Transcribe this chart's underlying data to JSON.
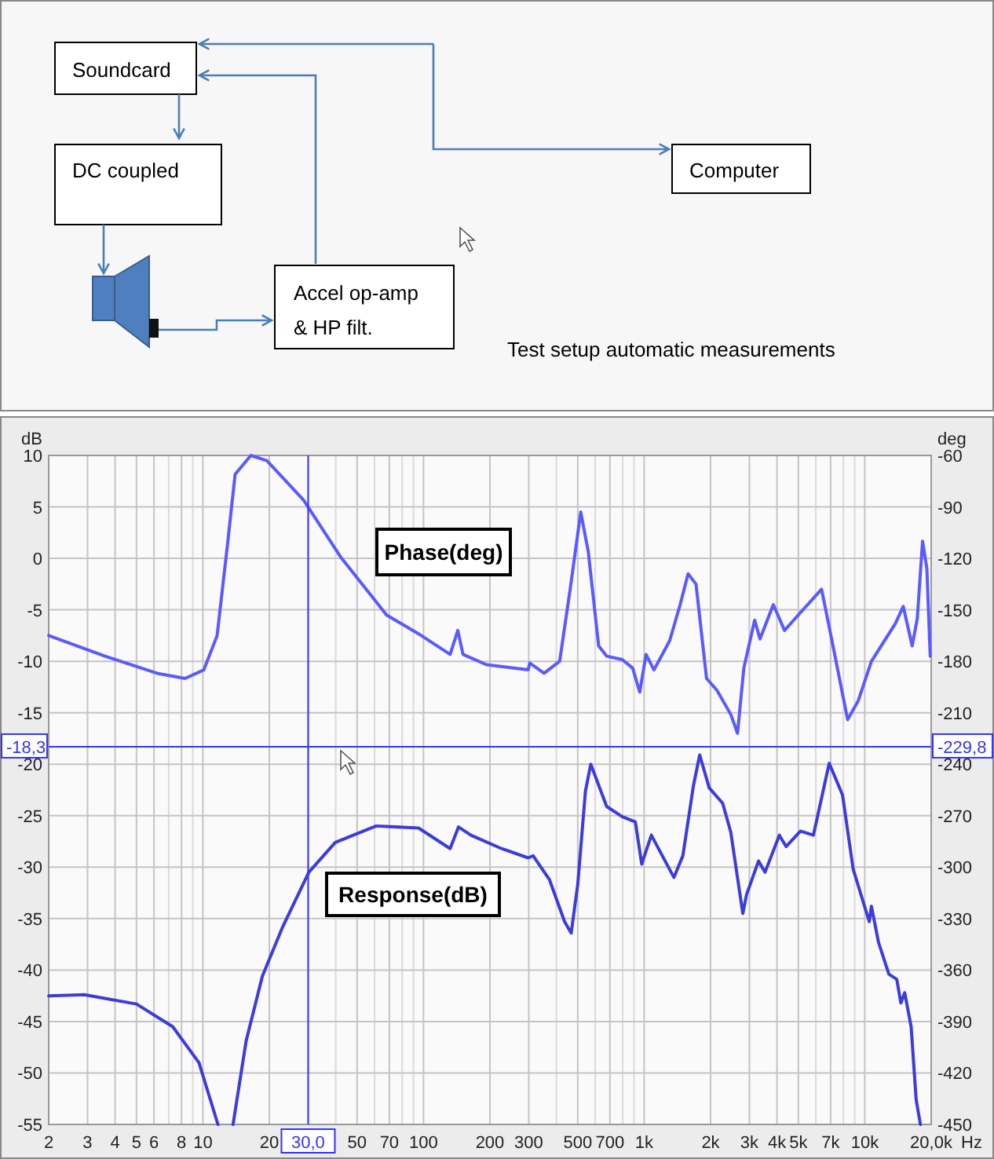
{
  "chart_data": {
    "type": "line",
    "xlabel": "Hz",
    "ylabel": "dB",
    "y2label": "deg",
    "log": "x",
    "grid": true,
    "annotations": [
      "Soundcard",
      "DC coupled",
      "Computer",
      "Accel op-amp",
      "& HP filt.",
      "Test setup automatic measurements",
      "-229,8"
    ],
    "xlim": [
      2,
      20000
    ],
    "xticks": [
      2,
      3,
      4,
      5,
      6,
      {
        "value": 7,
        "label": null
      },
      8,
      {
        "value": 9,
        "label": null
      },
      10,
      20,
      {
        "value": 30,
        "label": null
      },
      {
        "value": 40,
        "label": null
      },
      50,
      {
        "value": 60,
        "label": null
      },
      70,
      {
        "value": 80,
        "label": null
      },
      {
        "value": 90,
        "label": null
      },
      100,
      200,
      300,
      {
        "value": 400,
        "label": null
      },
      500,
      {
        "value": 600,
        "label": null
      },
      700,
      {
        "value": 800,
        "label": null
      },
      {
        "value": 900,
        "label": null
      },
      {
        "value": 1000,
        "label": "1k"
      },
      {
        "value": 2000,
        "label": "2k"
      },
      {
        "value": 3000,
        "label": "3k"
      },
      {
        "value": 4000,
        "label": "4k"
      },
      {
        "value": 5000,
        "label": "5k"
      },
      {
        "value": 6000,
        "label": null
      },
      {
        "value": 7000,
        "label": "7k"
      },
      {
        "value": 8000,
        "label": null
      },
      {
        "value": 9000,
        "label": null
      },
      {
        "value": 10000,
        "label": "10k"
      },
      {
        "value": 20000,
        "label": "20,0k"
      }
    ],
    "ylim": [
      -55,
      10
    ],
    "yticks": [
      10,
      5,
      0,
      -5,
      -10,
      -15,
      -20,
      -25,
      -30,
      -35,
      -40,
      -45,
      -50,
      -55
    ],
    "y2lim": [
      -450,
      -60
    ],
    "y2ticks": [
      -60,
      -90,
      -120,
      -150,
      -180,
      -210,
      -240,
      -270,
      -300,
      -330,
      -360,
      -390,
      -420,
      -450
    ],
    "ref_lines": [
      {
        "axis": "y",
        "value": -18.3,
        "label": "-18,3",
        "color": "#3333ff"
      },
      {
        "axis": "x",
        "value": 30,
        "label": "30,0",
        "color": "#3333ff"
      }
    ],
    "series": [
      {
        "name": "Phase(deg)",
        "color": "#5a5aff",
        "axis": "y2",
        "x": [
          2,
          3.6,
          6.2,
          8.3,
          10.1,
          11.6,
          12.9,
          14,
          16.5,
          19.5,
          28.6,
          42,
          68,
          95,
          132,
          143,
          151,
          193,
          298,
          303,
          352,
          414,
          462,
          516,
          558,
          622,
          676,
          796,
          887,
          955,
          1020,
          1108,
          1305,
          1456,
          1582,
          1718,
          1918,
          2140,
          2470,
          2650,
          2830,
          3170,
          3350,
          3850,
          4330,
          4840,
          6370,
          7100,
          8360,
          9340,
          10720,
          13760,
          14940,
          16400,
          17300,
          18280,
          19120,
          19800
        ],
        "values": [
          -165,
          -177,
          -187,
          -190,
          -185,
          -165,
          -113,
          -71,
          -60,
          -63,
          -86,
          -119,
          -153,
          -164,
          -176,
          -162,
          -176,
          -182,
          -185,
          -181,
          -187,
          -180,
          -138,
          -93,
          -116,
          -171,
          -177,
          -179,
          -184,
          -198,
          -176,
          -185,
          -168,
          -147,
          -129,
          -135,
          -190,
          -197,
          -211,
          -222,
          -184,
          -156,
          -167,
          -147,
          -162,
          -155,
          -138,
          -168,
          -214,
          -203,
          -180,
          -158,
          -148,
          -171,
          -155,
          -110,
          -126,
          -177
        ]
      },
      {
        "name": "Response(dB)",
        "color": "#3c3cdc",
        "axis": "y",
        "x": [
          2,
          2.9,
          5,
          7.3,
          9.6,
          11.7,
          12.6,
          13.7,
          15.7,
          18.6,
          23,
          30.2,
          39.8,
          61,
          95,
          132,
          144,
          164,
          226,
          298,
          314,
          372,
          436,
          467,
          500,
          542,
          573,
          676,
          796,
          912,
          975,
          1078,
          1364,
          1498,
          1672,
          1786,
          1972,
          2270,
          2470,
          2800,
          2910,
          3300,
          3530,
          4100,
          4400,
          5110,
          5850,
          6900,
          7930,
          8860,
          10480,
          10720,
          11540,
          12860,
          13960,
          14580,
          15170,
          16220,
          17100,
          17870
        ],
        "values": [
          -42.5,
          -42.4,
          -43.3,
          -45.5,
          -49,
          -55,
          null,
          -55,
          -46.9,
          -40.6,
          -35.8,
          -30.5,
          -27.6,
          -26,
          -26.2,
          -28.2,
          -26.1,
          -26.9,
          -28.2,
          -29.1,
          -28.9,
          -31.2,
          -35.3,
          -36.4,
          -31.7,
          -22.6,
          -20,
          -24.1,
          -25.1,
          -25.6,
          -29.7,
          -26.9,
          -31,
          -28.9,
          -22.1,
          -19.1,
          -22.3,
          -23.8,
          -26.6,
          -34.5,
          -32.7,
          -29.4,
          -30.5,
          -26.9,
          -28,
          -26.5,
          -26.9,
          -19.9,
          -23,
          -30.2,
          -35.3,
          -33.8,
          -37.3,
          -40.4,
          -40.9,
          -43.2,
          -42.2,
          -45.5,
          -52.6,
          -55
        ]
      }
    ]
  }
}
